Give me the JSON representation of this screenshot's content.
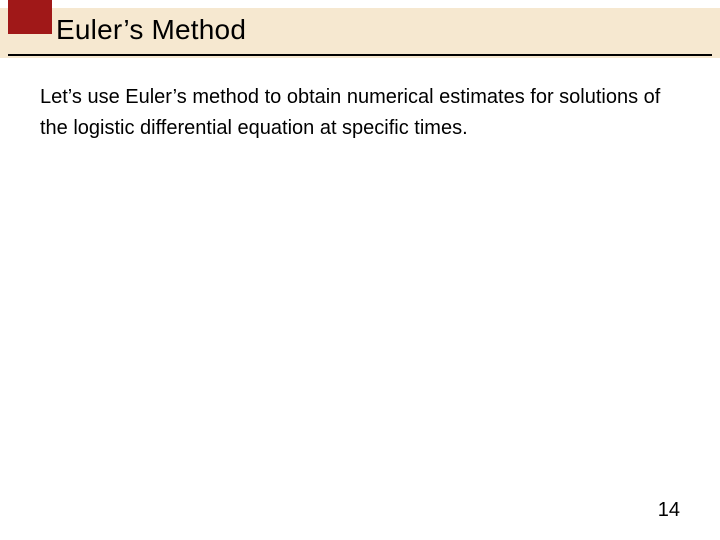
{
  "colors": {
    "header_band": "#f6e8d0",
    "accent_block": "#a01818",
    "underline": "#000000",
    "background": "#ffffff",
    "text": "#000000"
  },
  "header": {
    "title": "Euler’s Method"
  },
  "body": {
    "paragraph": "Let’s use Euler’s method to obtain numerical estimates for solutions of the logistic differential equation at specific times."
  },
  "footer": {
    "page_number": "14"
  },
  "typography": {
    "title_fontsize": 28,
    "body_fontsize": 20,
    "page_number_fontsize": 20
  }
}
